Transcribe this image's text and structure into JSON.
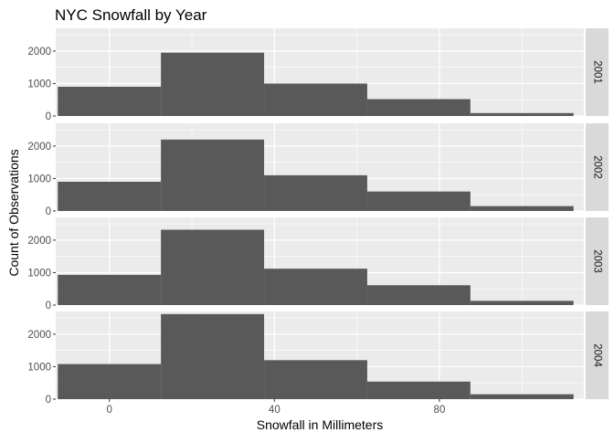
{
  "chart_data": {
    "type": "bar",
    "title": "NYC Snowfall by Year",
    "xlabel": "Snowfall in Millimeters",
    "ylabel": "Count of Observations",
    "xlim": [
      -13,
      115
    ],
    "ylim": [
      0,
      2700
    ],
    "x_ticks": [
      0,
      40,
      80
    ],
    "y_ticks": [
      0,
      1000,
      2000
    ],
    "bin_width": 25,
    "bin_starts": [
      -12.5,
      12.5,
      37.5,
      62.5,
      87.5
    ],
    "facet_by": "year",
    "panels": [
      {
        "label": "2001",
        "values": [
          900,
          1950,
          1000,
          520,
          90
        ]
      },
      {
        "label": "2002",
        "values": [
          900,
          2200,
          1100,
          600,
          150
        ]
      },
      {
        "label": "2003",
        "values": [
          930,
          2320,
          1120,
          610,
          130
        ]
      },
      {
        "label": "2004",
        "values": [
          1080,
          2620,
          1200,
          540,
          150
        ]
      }
    ],
    "colors": {
      "bar": "#595959",
      "panel_background": "#ebebeb",
      "grid_major": "#ffffff",
      "strip_background": "#d9d9d9",
      "axis_text": "#4d4d4d",
      "title_text": "#000000"
    },
    "grid": true,
    "legend": "none"
  }
}
